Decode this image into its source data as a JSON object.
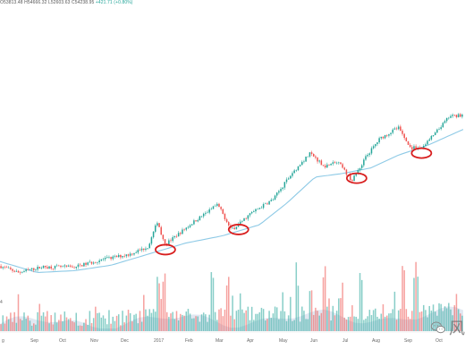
{
  "ohlc_text": "O53813.48 H54666.32 L52603.63 C54238.95",
  "ohlc_change": "+421.71 (+0.80%)",
  "left_axis_fragment": "4",
  "watermark": {
    "icon": "wechat-icon",
    "text": "风"
  },
  "colors": {
    "up": "#26a69a",
    "down": "#ef5350",
    "ma": "#8ecae6",
    "marker": "#d81e1e"
  },
  "chart_data": {
    "type": "candlestick",
    "title": "",
    "x_ticks": [
      "Aug",
      "Sep",
      "Oct",
      "Nov",
      "Dec",
      "2017",
      "Feb",
      "Mar",
      "Apr",
      "May",
      "Jun",
      "Jul",
      "Aug",
      "Sep",
      "Oct"
    ],
    "x_ticks_shown": [
      "g",
      "Sep",
      "Oct",
      "Nov",
      "Dec",
      "2017",
      "Feb",
      "Mar",
      "Apr",
      "May",
      "Jun",
      "Jul",
      "Aug",
      "Sep",
      "Oct"
    ],
    "y_axis_labels": "hidden",
    "price_series_anchors": [
      {
        "t": 0,
        "v": 0.135
      },
      {
        "t": 0.04,
        "v": 0.1
      },
      {
        "t": 0.09,
        "v": 0.13
      },
      {
        "t": 0.16,
        "v": 0.13
      },
      {
        "t": 0.22,
        "v": 0.17
      },
      {
        "t": 0.28,
        "v": 0.2
      },
      {
        "t": 0.32,
        "v": 0.24
      },
      {
        "t": 0.34,
        "v": 0.38
      },
      {
        "t": 0.355,
        "v": 0.25
      },
      {
        "t": 0.38,
        "v": 0.3
      },
      {
        "t": 0.42,
        "v": 0.38
      },
      {
        "t": 0.47,
        "v": 0.47
      },
      {
        "t": 0.5,
        "v": 0.33
      },
      {
        "t": 0.54,
        "v": 0.42
      },
      {
        "t": 0.59,
        "v": 0.5
      },
      {
        "t": 0.63,
        "v": 0.64
      },
      {
        "t": 0.67,
        "v": 0.75
      },
      {
        "t": 0.7,
        "v": 0.68
      },
      {
        "t": 0.73,
        "v": 0.7
      },
      {
        "t": 0.76,
        "v": 0.6
      },
      {
        "t": 0.79,
        "v": 0.73
      },
      {
        "t": 0.82,
        "v": 0.83
      },
      {
        "t": 0.86,
        "v": 0.89
      },
      {
        "t": 0.885,
        "v": 0.78
      },
      {
        "t": 0.91,
        "v": 0.78
      },
      {
        "t": 0.94,
        "v": 0.86
      },
      {
        "t": 0.97,
        "v": 0.95
      },
      {
        "t": 1,
        "v": 0.96
      }
    ],
    "moving_average_anchors": [
      {
        "t": 0,
        "v": 0.16
      },
      {
        "t": 0.08,
        "v": 0.1
      },
      {
        "t": 0.16,
        "v": 0.11
      },
      {
        "t": 0.24,
        "v": 0.14
      },
      {
        "t": 0.32,
        "v": 0.2
      },
      {
        "t": 0.4,
        "v": 0.26
      },
      {
        "t": 0.48,
        "v": 0.3
      },
      {
        "t": 0.56,
        "v": 0.36
      },
      {
        "t": 0.62,
        "v": 0.48
      },
      {
        "t": 0.68,
        "v": 0.62
      },
      {
        "t": 0.74,
        "v": 0.64
      },
      {
        "t": 0.8,
        "v": 0.67
      },
      {
        "t": 0.86,
        "v": 0.74
      },
      {
        "t": 0.92,
        "v": 0.79
      },
      {
        "t": 1,
        "v": 0.88
      }
    ],
    "highlighted_dips_t": [
      0.357,
      0.515,
      0.77,
      0.91
    ],
    "volume_spikes_t": [
      0.34,
      0.355,
      0.46,
      0.49,
      0.64,
      0.67,
      0.7,
      0.78,
      0.87,
      0.895,
      0.9
    ],
    "grid": false,
    "legend": "none"
  }
}
